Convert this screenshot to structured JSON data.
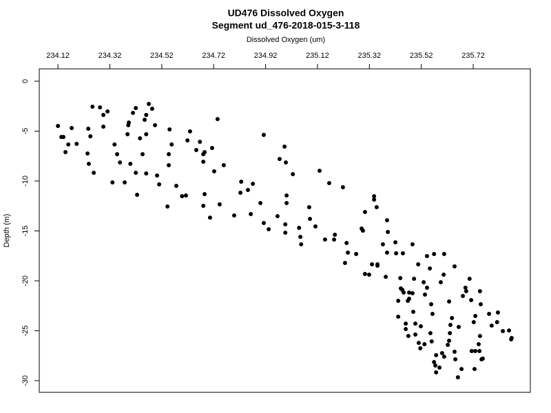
{
  "chart_data": {
    "type": "scatter",
    "title": "UD476 Dissolved Oxygen",
    "subtitle": "Segment ud_476-2018-015-3-118",
    "x_label": "Dissolved Oxygen (um)",
    "y_label": "Depth (m)",
    "xlim": [
      234.048,
      235.94
    ],
    "ylim": [
      -31.17,
      1.24
    ],
    "xticks": [
      234.12,
      234.32,
      234.52,
      234.72,
      234.92,
      235.12,
      235.32,
      235.52,
      235.72
    ],
    "yticks": [
      0,
      -5,
      -10,
      -15,
      -20,
      -25,
      -30
    ],
    "color": "#000000",
    "x": [
      234.12,
      234.133,
      234.141,
      234.149,
      234.16,
      234.173,
      234.192,
      234.237,
      234.245,
      234.234,
      234.239,
      234.258,
      234.253,
      234.282,
      234.295,
      234.311,
      234.295,
      234.338,
      234.348,
      234.359,
      234.33,
      234.377,
      234.391,
      234.393,
      234.388,
      234.399,
      234.409,
      234.42,
      234.42,
      234.425,
      234.436,
      234.446,
      234.454,
      234.46,
      234.46,
      234.47,
      234.483,
      234.494,
      234.46,
      234.502,
      234.51,
      234.55,
      234.558,
      234.547,
      234.547,
      234.542,
      234.576,
      234.598,
      234.613,
      234.629,
      234.619,
      234.653,
      234.667,
      234.68,
      234.68,
      234.685,
      234.714,
      234.722,
      234.735,
      234.759,
      234.685,
      234.68,
      234.706,
      234.743,
      234.799,
      234.826,
      234.823,
      234.871,
      234.852,
      234.9,
      234.913,
      234.932,
      234.966,
      234.863,
      234.913,
      234.993,
      234.974,
      234.998,
      235.025,
      235.001,
      235.001,
      234.996,
      234.996,
      235.049,
      235.054,
      235.057,
      235.088,
      235.091,
      235.112,
      235.128,
      235.165,
      235.218,
      235.149,
      235.187,
      235.184,
      235.232,
      235.237,
      235.226,
      235.269,
      235.29,
      235.295,
      235.303,
      235.338,
      235.338,
      235.348,
      235.388,
      235.391,
      235.372,
      235.388,
      235.351,
      235.351,
      235.33,
      235.303,
      235.319,
      235.383,
      235.42,
      235.423,
      235.449,
      235.486,
      235.508,
      235.542,
      235.553,
      235.569,
      235.608,
      235.648,
      235.606,
      235.492,
      235.529,
      235.542,
      235.534,
      235.439,
      235.441,
      235.447,
      235.452,
      235.431,
      235.473,
      235.473,
      235.486,
      235.468,
      235.489,
      235.431,
      235.46,
      235.46,
      235.47,
      235.497,
      235.497,
      235.51,
      235.516,
      235.518,
      235.532,
      235.56,
      235.558,
      235.563,
      235.555,
      235.595,
      235.627,
      235.638,
      235.632,
      235.63,
      235.627,
      235.622,
      235.6,
      235.569,
      235.577,
      235.574,
      235.577,
      235.59,
      235.608,
      235.648,
      235.651,
      235.661,
      235.675,
      235.68,
      235.69,
      235.693,
      235.706,
      235.712,
      235.728,
      235.722,
      235.714,
      235.728,
      235.744,
      235.746,
      235.741,
      235.752,
      235.757,
      235.749,
      235.746,
      235.781,
      235.791,
      235.812,
      235.815,
      235.834,
      235.858,
      235.868,
      235.866,
      235.725,
      235.664
    ],
    "values": [
      -4.48,
      -5.59,
      -5.59,
      -7.1,
      -6.34,
      -4.69,
      -6.28,
      -4.76,
      -5.52,
      -7.24,
      -8.28,
      -9.17,
      -2.55,
      -2.62,
      -3.38,
      -3.03,
      -4.55,
      -6.34,
      -7.31,
      -8.14,
      -10.14,
      -10.14,
      -4.41,
      -4.14,
      -5.31,
      -8.28,
      -3.17,
      -2.69,
      -9.17,
      -11.38,
      -5.72,
      -7.31,
      -3.86,
      -5.31,
      -3.38,
      -2.28,
      -2.76,
      -4.41,
      -9.24,
      -9.45,
      -10.34,
      -4.83,
      -6.34,
      -8.41,
      -7.31,
      -12.55,
      -10.48,
      -11.52,
      -11.45,
      -5.03,
      -5.93,
      -6.9,
      -6.07,
      -7.31,
      -8.07,
      -7.1,
      -6.69,
      -9.03,
      -3.79,
      -8.41,
      -11.31,
      -12.48,
      -13.66,
      -12.34,
      -13.45,
      -10.07,
      -11.17,
      -10.28,
      -10.9,
      -12.21,
      -14.21,
      -14.83,
      -13.52,
      -13.31,
      -5.38,
      -6.55,
      -7.79,
      -8.14,
      -9.31,
      -11.45,
      -12.21,
      -14.34,
      -15.17,
      -14.69,
      -15.59,
      -16.34,
      -12.62,
      -13.79,
      -14.55,
      -8.97,
      -10.21,
      -10.62,
      -15.86,
      -15.38,
      -15.86,
      -16.21,
      -17.17,
      -18.21,
      -17.31,
      -14.76,
      -14.97,
      -13.1,
      -11.52,
      -11.86,
      -12.62,
      -13.93,
      -15.1,
      -16.34,
      -17.17,
      -18.34,
      -18.48,
      -18.34,
      -19.31,
      -19.38,
      -19.59,
      -16.14,
      -17.24,
      -17.24,
      -16.34,
      -18.34,
      -17.52,
      -18.76,
      -17.31,
      -17.31,
      -18.55,
      -19.38,
      -19.79,
      -20.14,
      -20.69,
      -21.38,
      -19.72,
      -20.76,
      -20.9,
      -21.17,
      -22.0,
      -21.17,
      -21.79,
      -21.24,
      -22.0,
      -23.1,
      -23.59,
      -24.28,
      -24.83,
      -25.52,
      -24.28,
      -25.38,
      -26.21,
      -26.76,
      -24.55,
      -26.34,
      -26.07,
      -22.34,
      -23.31,
      -25.24,
      -20.14,
      -22.07,
      -23.72,
      -24.41,
      -25.24,
      -26.0,
      -26.41,
      -27.24,
      -28.14,
      -27.45,
      -28.48,
      -29.17,
      -28.69,
      -27.59,
      -27.1,
      -27.86,
      -29.66,
      -28.83,
      -21.52,
      -20.69,
      -21.03,
      -19.79,
      -21.93,
      -23.52,
      -24.14,
      -27.03,
      -27.03,
      -27.03,
      -25.52,
      -26.34,
      -27.86,
      -27.79,
      -22.34,
      -21.03,
      -23.31,
      -24.48,
      -24.14,
      -23.17,
      -25.03,
      -24.97,
      -25.72,
      -25.86,
      -28.83,
      -24.62
    ]
  }
}
